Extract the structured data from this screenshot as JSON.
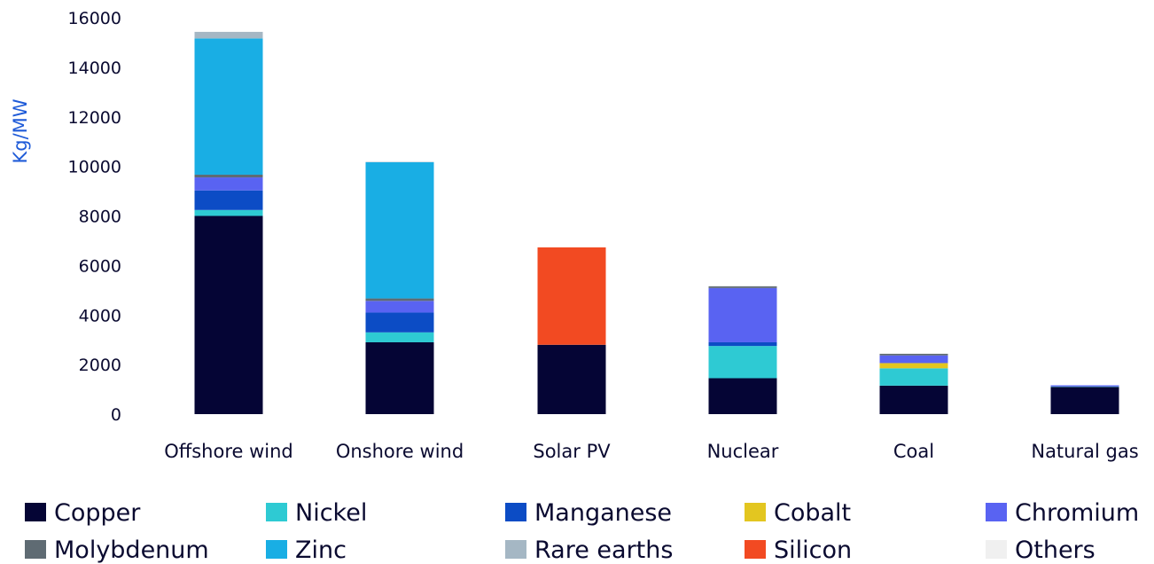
{
  "chart_data": {
    "type": "bar",
    "stacked": true,
    "ylabel": "Kg/MW",
    "xlabel": "",
    "ylim": [
      0,
      16000
    ],
    "yticks": [
      0,
      2000,
      4000,
      6000,
      8000,
      10000,
      12000,
      14000,
      16000
    ],
    "grid": false,
    "legend_position": "bottom",
    "categories": [
      "Offshore wind",
      "Onshore wind",
      "Solar PV",
      "Nuclear",
      "Coal",
      "Natural gas"
    ],
    "series": [
      {
        "name": "Copper",
        "color": "#050535",
        "values": [
          8000,
          2900,
          2800,
          1450,
          1150,
          1100
        ]
      },
      {
        "name": "Nickel",
        "color": "#2ecad3",
        "values": [
          240,
          400,
          0,
          1300,
          700,
          16
        ]
      },
      {
        "name": "Manganese",
        "color": "#0c4cc5",
        "values": [
          790,
          800,
          0,
          150,
          0,
          0
        ]
      },
      {
        "name": "Cobalt",
        "color": "#e3c620",
        "values": [
          0,
          0,
          0,
          0,
          210,
          0
        ]
      },
      {
        "name": "Chromium",
        "color": "#5963f2",
        "values": [
          525,
          470,
          0,
          2190,
          310,
          48
        ]
      },
      {
        "name": "Molybdenum",
        "color": "#5f6b73",
        "values": [
          110,
          99,
          0,
          70,
          66,
          0
        ]
      },
      {
        "name": "Zinc",
        "color": "#19aee4",
        "values": [
          5500,
          5500,
          0,
          0,
          0,
          0
        ]
      },
      {
        "name": "Rare earths",
        "color": "#a5b7c4",
        "values": [
          265,
          14,
          0,
          0,
          0,
          0
        ]
      },
      {
        "name": "Silicon",
        "color": "#f24a22",
        "values": [
          0,
          0,
          3930,
          0,
          0,
          0
        ]
      },
      {
        "name": "Others",
        "color": "#f0f0f0",
        "values": [
          0,
          0,
          0,
          0,
          0,
          0
        ]
      }
    ]
  }
}
